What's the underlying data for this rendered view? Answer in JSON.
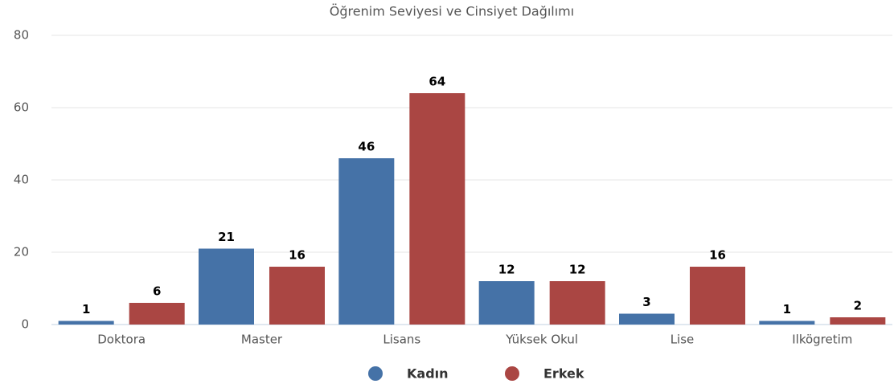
{
  "chart_data": {
    "type": "bar",
    "title": "Öğrenim Seviyesi ve Cinsiyet Dağılımı",
    "categories": [
      "Doktora",
      "Master",
      "Lisans",
      "Yüksek Okul",
      "Lise",
      "Ilkögretim"
    ],
    "series": [
      {
        "name": "Kadın",
        "color": "#4572a7",
        "values": [
          1,
          21,
          46,
          12,
          3,
          1
        ]
      },
      {
        "name": "Erkek",
        "color": "#aa4643",
        "values": [
          6,
          16,
          64,
          12,
          16,
          2
        ]
      }
    ],
    "ylim": [
      0,
      80
    ],
    "yticks": [
      0,
      20,
      40,
      60,
      80
    ],
    "grid": true,
    "legend": "bottom"
  }
}
